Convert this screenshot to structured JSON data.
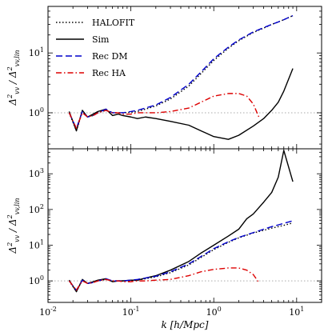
{
  "chart_data": {
    "type": "line",
    "xscale": "log",
    "yscale": "log",
    "xlabel": "k [h/Mpc]",
    "xlim": [
      0.01,
      20
    ],
    "x_ticks": [
      0.01,
      0.1,
      1,
      10
    ],
    "x_tick_labels": [
      "10^-2",
      "10^-1",
      "10^0",
      "10^1"
    ],
    "legend": {
      "location": "upper-left",
      "entries": [
        {
          "label": "HALOFIT",
          "style": "dotted",
          "color": "#000000"
        },
        {
          "label": "Sim",
          "style": "solid",
          "color": "#000000"
        },
        {
          "label": "Rec DM",
          "style": "dashed",
          "color": "#0000cc"
        },
        {
          "label": "Rec HA",
          "style": "dashdot",
          "color": "#dd0000"
        }
      ]
    },
    "reference_line": {
      "y": 1,
      "color": "#bbbbbb",
      "style": "dotted"
    },
    "panels": [
      {
        "ylabel": "Δ²_vv / Δ²_vv,lin",
        "ylim": [
          0.25,
          60
        ],
        "y_ticks": [
          1,
          10
        ],
        "y_tick_labels": [
          "10^0",
          "10^1"
        ],
        "series": [
          {
            "name": "HALOFIT",
            "style": "dotted",
            "color": "#000000",
            "x": [
              0.018,
              0.022,
              0.026,
              0.03,
              0.035,
              0.04,
              0.05,
              0.06,
              0.07,
              0.08,
              0.1,
              0.12,
              0.15,
              0.2,
              0.3,
              0.5,
              0.7,
              1.0,
              1.5,
              2.0,
              3.0,
              4.0,
              5.0,
              6.0,
              7.0,
              9.0
            ],
            "y": [
              1.0,
              0.5,
              1.05,
              0.85,
              0.9,
              1.0,
              1.1,
              1.0,
              1.0,
              1.0,
              1.02,
              1.05,
              1.15,
              1.3,
              1.7,
              2.8,
              4.5,
              7.5,
              12.0,
              16.0,
              22.0,
              26.0,
              30.0,
              33.0,
              36.0,
              42.0
            ]
          },
          {
            "name": "Sim",
            "style": "solid",
            "color": "#000000",
            "x": [
              0.018,
              0.022,
              0.026,
              0.03,
              0.035,
              0.04,
              0.05,
              0.06,
              0.07,
              0.08,
              0.1,
              0.12,
              0.15,
              0.2,
              0.3,
              0.5,
              0.7,
              1.0,
              1.5,
              2.0,
              3.0,
              4.0,
              5.0,
              6.0,
              7.0,
              9.0
            ],
            "y": [
              1.05,
              0.5,
              1.1,
              0.85,
              0.95,
              1.05,
              1.15,
              0.9,
              0.95,
              0.9,
              0.85,
              0.8,
              0.85,
              0.8,
              0.72,
              0.62,
              0.5,
              0.4,
              0.36,
              0.42,
              0.6,
              0.8,
              1.1,
              1.5,
              2.3,
              5.5
            ]
          },
          {
            "name": "Rec DM",
            "style": "dashed",
            "color": "#0000cc",
            "x": [
              0.018,
              0.022,
              0.026,
              0.03,
              0.035,
              0.04,
              0.05,
              0.06,
              0.07,
              0.08,
              0.1,
              0.12,
              0.15,
              0.2,
              0.3,
              0.5,
              0.7,
              1.0,
              1.5,
              2.0,
              3.0,
              4.0,
              5.0,
              6.0,
              7.0,
              9.0
            ],
            "y": [
              1.0,
              0.55,
              1.05,
              0.85,
              0.9,
              1.0,
              1.15,
              1.0,
              1.0,
              1.0,
              1.05,
              1.1,
              1.2,
              1.35,
              1.8,
              3.0,
              4.8,
              8.0,
              12.5,
              16.5,
              22.5,
              26.5,
              30.0,
              33.0,
              36.0,
              42.0
            ]
          },
          {
            "name": "Rec HA",
            "style": "dashdot",
            "color": "#dd0000",
            "x": [
              0.018,
              0.022,
              0.026,
              0.03,
              0.035,
              0.04,
              0.05,
              0.06,
              0.07,
              0.08,
              0.1,
              0.12,
              0.15,
              0.2,
              0.3,
              0.5,
              0.7,
              1.0,
              1.5,
              2.0,
              2.5,
              3.0,
              3.5
            ],
            "y": [
              1.0,
              0.55,
              1.0,
              0.85,
              0.9,
              1.0,
              1.1,
              1.0,
              1.0,
              0.95,
              0.95,
              1.0,
              1.0,
              1.0,
              1.05,
              1.2,
              1.5,
              1.9,
              2.1,
              2.1,
              1.9,
              1.4,
              0.85
            ]
          }
        ]
      },
      {
        "ylabel": "Δ²_vv / Δ²_vv,lin",
        "ylim": [
          0.25,
          5000
        ],
        "y_ticks": [
          1,
          10,
          100,
          1000
        ],
        "y_tick_labels": [
          "10^0",
          "10^1",
          "10^2",
          "10^3"
        ],
        "series": [
          {
            "name": "HALOFIT",
            "style": "dotted",
            "color": "#000000",
            "x": [
              0.018,
              0.022,
              0.026,
              0.03,
              0.035,
              0.04,
              0.05,
              0.06,
              0.07,
              0.08,
              0.1,
              0.12,
              0.15,
              0.2,
              0.3,
              0.5,
              0.7,
              1.0,
              1.5,
              2.0,
              3.0,
              4.0,
              5.0,
              6.0,
              7.0,
              9.0
            ],
            "y": [
              1.0,
              0.5,
              1.05,
              0.85,
              0.9,
              1.0,
              1.1,
              1.0,
              1.0,
              1.0,
              1.02,
              1.05,
              1.15,
              1.3,
              1.7,
              2.8,
              4.5,
              7.5,
              12.0,
              16.0,
              22.0,
              26.0,
              30.0,
              33.0,
              36.0,
              42.0
            ]
          },
          {
            "name": "Sim",
            "style": "solid",
            "color": "#000000",
            "x": [
              0.018,
              0.022,
              0.026,
              0.03,
              0.035,
              0.04,
              0.05,
              0.06,
              0.07,
              0.08,
              0.1,
              0.12,
              0.15,
              0.2,
              0.3,
              0.5,
              0.7,
              1.0,
              1.5,
              2.0,
              2.5,
              3.0,
              4.0,
              5.0,
              6.0,
              7.0,
              9.0
            ],
            "y": [
              1.05,
              0.5,
              1.1,
              0.85,
              0.95,
              1.05,
              1.15,
              0.95,
              1.0,
              1.0,
              1.05,
              1.05,
              1.2,
              1.4,
              2.0,
              3.5,
              6.0,
              10.0,
              18.0,
              28.0,
              55.0,
              75.0,
              160.0,
              300.0,
              800.0,
              4500.0,
              600.0
            ]
          },
          {
            "name": "Rec DM",
            "style": "dashed",
            "color": "#0000cc",
            "x": [
              0.018,
              0.022,
              0.026,
              0.03,
              0.035,
              0.04,
              0.05,
              0.06,
              0.07,
              0.08,
              0.1,
              0.12,
              0.15,
              0.2,
              0.3,
              0.5,
              0.7,
              1.0,
              1.5,
              2.0,
              3.0,
              4.0,
              5.0,
              6.0,
              7.0,
              9.0
            ],
            "y": [
              1.0,
              0.55,
              1.05,
              0.85,
              0.9,
              1.0,
              1.15,
              1.0,
              1.0,
              1.0,
              1.05,
              1.1,
              1.2,
              1.35,
              1.8,
              3.0,
              4.8,
              8.0,
              12.5,
              16.5,
              22.5,
              28.0,
              33.0,
              37.0,
              41.0,
              48.0
            ]
          },
          {
            "name": "Rec HA",
            "style": "dashdot",
            "color": "#dd0000",
            "x": [
              0.018,
              0.022,
              0.026,
              0.03,
              0.035,
              0.04,
              0.05,
              0.06,
              0.07,
              0.08,
              0.1,
              0.12,
              0.15,
              0.2,
              0.3,
              0.5,
              0.7,
              1.0,
              1.5,
              2.0,
              2.5,
              3.0,
              3.5
            ],
            "y": [
              1.0,
              0.55,
              1.0,
              0.85,
              0.9,
              1.0,
              1.1,
              1.0,
              1.0,
              0.95,
              0.95,
              1.0,
              1.0,
              1.05,
              1.1,
              1.4,
              1.8,
              2.1,
              2.3,
              2.3,
              2.0,
              1.5,
              0.9
            ]
          }
        ]
      }
    ]
  }
}
